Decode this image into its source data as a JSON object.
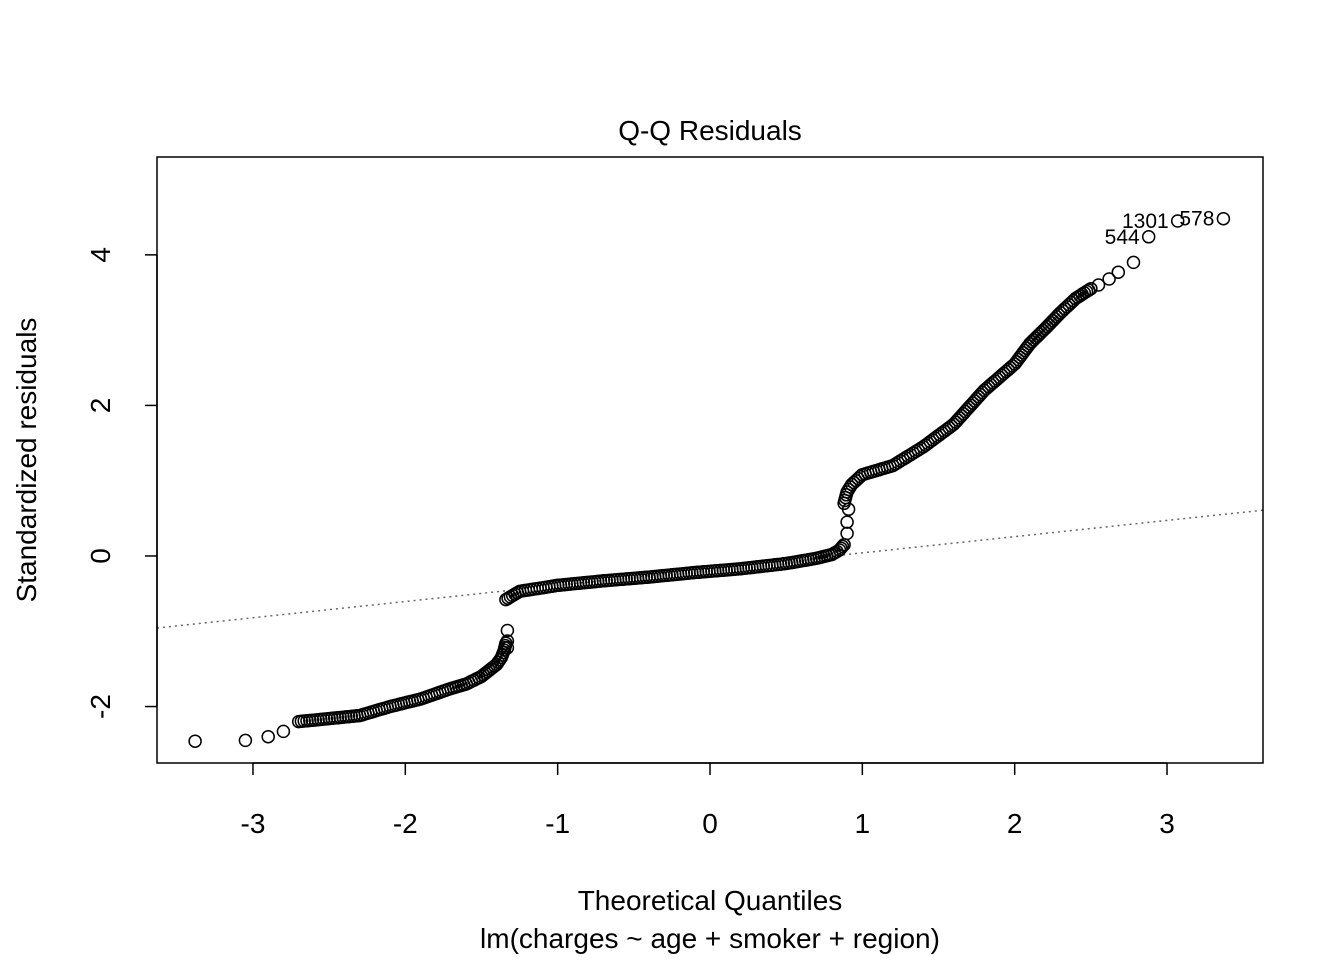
{
  "chart_data": {
    "type": "scatter",
    "title": "Q-Q Residuals",
    "xlabel": "Theoretical Quantiles",
    "ylabel": "Standardized residuals",
    "caption": "lm(charges ~ age + smoker + region)",
    "xlim": [
      -3.63,
      3.63
    ],
    "ylim": [
      -2.75,
      5.3
    ],
    "x_ticks": [
      -3,
      -2,
      -1,
      0,
      1,
      2,
      3
    ],
    "y_ticks": [
      -2,
      0,
      2,
      4
    ],
    "grid": false,
    "reference_line": {
      "slope": 0.2155,
      "intercept": -0.174,
      "style": "dotted",
      "color": "#666666"
    },
    "curve_segments": [
      {
        "x": [
          -2.7,
          -2.5,
          -2.3,
          -2.1,
          -1.9,
          -1.7,
          -1.6,
          -1.5,
          -1.45,
          -1.4,
          -1.37,
          -1.35,
          -1.34
        ],
        "y": [
          -2.2,
          -2.16,
          -2.12,
          -2.0,
          -1.9,
          -1.76,
          -1.7,
          -1.6,
          -1.52,
          -1.44,
          -1.35,
          -1.25,
          -1.16
        ]
      },
      {
        "x": [
          -1.34,
          -1.25,
          -1.0,
          -0.7,
          -0.4,
          -0.1,
          0.2,
          0.5,
          0.7,
          0.8,
          0.85,
          0.88
        ],
        "y": [
          -0.58,
          -0.47,
          -0.39,
          -0.33,
          -0.28,
          -0.22,
          -0.17,
          -0.1,
          -0.03,
          0.02,
          0.08,
          0.15
        ]
      },
      {
        "x": [
          0.88,
          0.9,
          0.93,
          1.0,
          1.2,
          1.4,
          1.6,
          1.8,
          2.0,
          2.1,
          2.2,
          2.3,
          2.4,
          2.5
        ],
        "y": [
          0.7,
          0.85,
          0.95,
          1.08,
          1.2,
          1.45,
          1.75,
          2.2,
          2.55,
          2.82,
          3.02,
          3.23,
          3.42,
          3.55
        ]
      }
    ],
    "extra_points": [
      {
        "x": -3.38,
        "y": -2.46
      },
      {
        "x": -3.05,
        "y": -2.45
      },
      {
        "x": -2.9,
        "y": -2.4
      },
      {
        "x": -2.8,
        "y": -2.33
      },
      {
        "x": -1.33,
        "y": -1.22
      },
      {
        "x": -1.33,
        "y": -1.13
      },
      {
        "x": -1.33,
        "y": -0.99
      },
      {
        "x": 0.9,
        "y": 0.3
      },
      {
        "x": 0.9,
        "y": 0.45
      },
      {
        "x": 0.91,
        "y": 0.62
      },
      {
        "x": 2.55,
        "y": 3.6
      },
      {
        "x": 2.62,
        "y": 3.68
      },
      {
        "x": 2.68,
        "y": 3.77
      },
      {
        "x": 2.78,
        "y": 3.9
      },
      {
        "x": 2.88,
        "y": 4.24
      },
      {
        "x": 3.07,
        "y": 4.45
      },
      {
        "x": 3.37,
        "y": 4.48
      }
    ],
    "point_labels": [
      {
        "text": "578",
        "x": 3.37,
        "y": 4.48
      },
      {
        "text": "1301",
        "x": 3.07,
        "y": 4.45
      },
      {
        "text": "544",
        "x": 2.88,
        "y": 4.24
      }
    ]
  }
}
